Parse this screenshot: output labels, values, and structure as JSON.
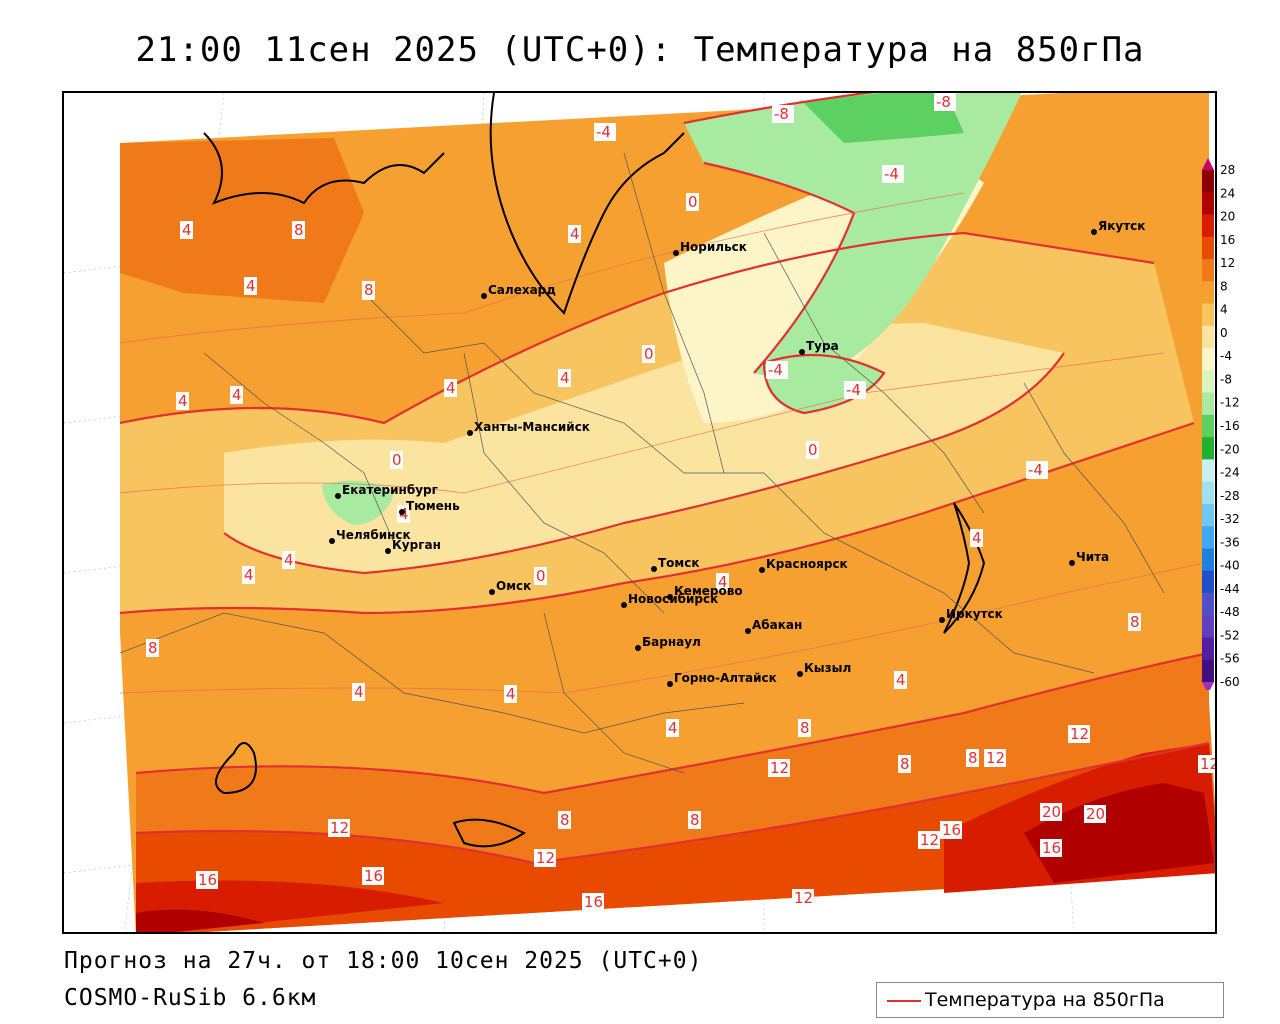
{
  "title": "21:00 11сен 2025 (UTC+0): Температура на 850гПа",
  "footer": {
    "forecast": "Прогноз на 27ч. от 18:00 10сен 2025 (UTC+0)",
    "model": "COSMO-RuSib 6.6км"
  },
  "legend": {
    "label": "Температура на 850гПа",
    "line_color": "#e23030"
  },
  "colorbar": {
    "ticks": [
      "28",
      "24",
      "20",
      "16",
      "12",
      "8",
      "4",
      "0",
      "-4",
      "-8",
      "-12",
      "-16",
      "-20",
      "-24",
      "-28",
      "-32",
      "-36",
      "-40",
      "-44",
      "-48",
      "-52",
      "-56",
      "-60"
    ],
    "colors": [
      "#c8006e",
      "#8b0000",
      "#b00000",
      "#d81c00",
      "#e84a00",
      "#f07a1a",
      "#f5a030",
      "#f8c460",
      "#fbe3a0",
      "#fdf5c8",
      "#d8f5c0",
      "#a8eaa0",
      "#5cd060",
      "#22b030",
      "#c8f0f0",
      "#a0e0f0",
      "#70c8f0",
      "#40a8f0",
      "#2080e0",
      "#2050c8",
      "#5050c8",
      "#6040c0",
      "#5020a0",
      "#401080",
      "#a030c0"
    ]
  },
  "cities": [
    {
      "name": "Якутск"
    },
    {
      "name": "Норильск"
    },
    {
      "name": "Салехард"
    },
    {
      "name": "Тура"
    },
    {
      "name": "Ханты-Мансийск"
    },
    {
      "name": "Екатеринбург"
    },
    {
      "name": "Тюмень"
    },
    {
      "name": "Челябинск"
    },
    {
      "name": "Курган"
    },
    {
      "name": "Омск"
    },
    {
      "name": "Томск"
    },
    {
      "name": "Красноярск"
    },
    {
      "name": "Новосибирск"
    },
    {
      "name": "Кемерово"
    },
    {
      "name": "Абакан"
    },
    {
      "name": "Иркутск"
    },
    {
      "name": "Чита"
    },
    {
      "name": "Барнаул"
    },
    {
      "name": "Горно-Алтайск"
    },
    {
      "name": "Кызыл"
    }
  ],
  "isotherm_labels": [
    "-8",
    "-8",
    "-4",
    "-4",
    "0",
    "4",
    "4",
    "8",
    "8",
    "4",
    "8",
    "4",
    "0",
    "4",
    "4",
    "4",
    "0",
    "-4",
    "-4",
    "0",
    "-4",
    "4",
    "4",
    "0",
    "8",
    "4",
    "4",
    "4",
    "8",
    "4",
    "4",
    "4",
    "8",
    "12",
    "4",
    "12",
    "8",
    "8",
    "8",
    "8",
    "12",
    "16",
    "12",
    "16",
    "12",
    "16",
    "20",
    "20",
    "16",
    "12",
    "12",
    "12",
    "16"
  ]
}
